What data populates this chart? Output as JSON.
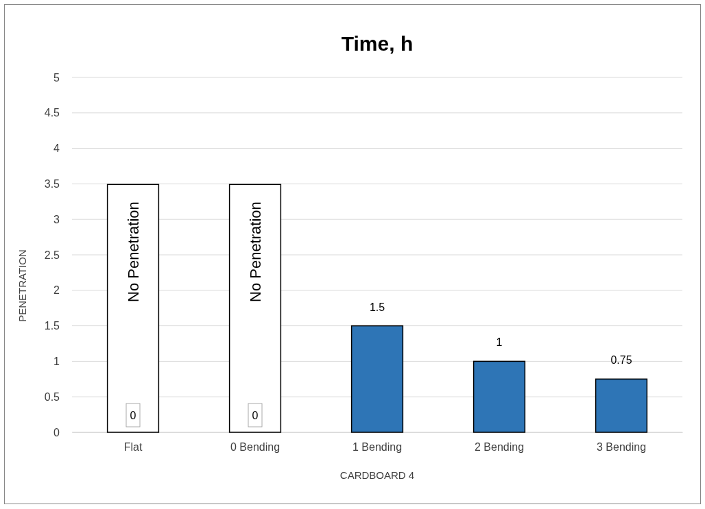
{
  "chart_data": {
    "type": "bar",
    "title": "Time, h",
    "xlabel": "CARDBOARD 4",
    "ylabel": "PENETRATION",
    "categories": [
      "Flat",
      "0 Bending",
      "1 Bending",
      "2 Bending",
      "3 Bending"
    ],
    "values": [
      0,
      0,
      1.5,
      1,
      0.75
    ],
    "color": "#2e75b6",
    "ylim": [
      0,
      5
    ],
    "yticks": [
      0,
      0.5,
      1,
      1.5,
      2,
      2.5,
      3,
      3.5,
      4,
      4.5,
      5
    ],
    "grid": "y",
    "data_labels": true,
    "annotations": [
      "No Penetration",
      "No Penetration"
    ]
  }
}
